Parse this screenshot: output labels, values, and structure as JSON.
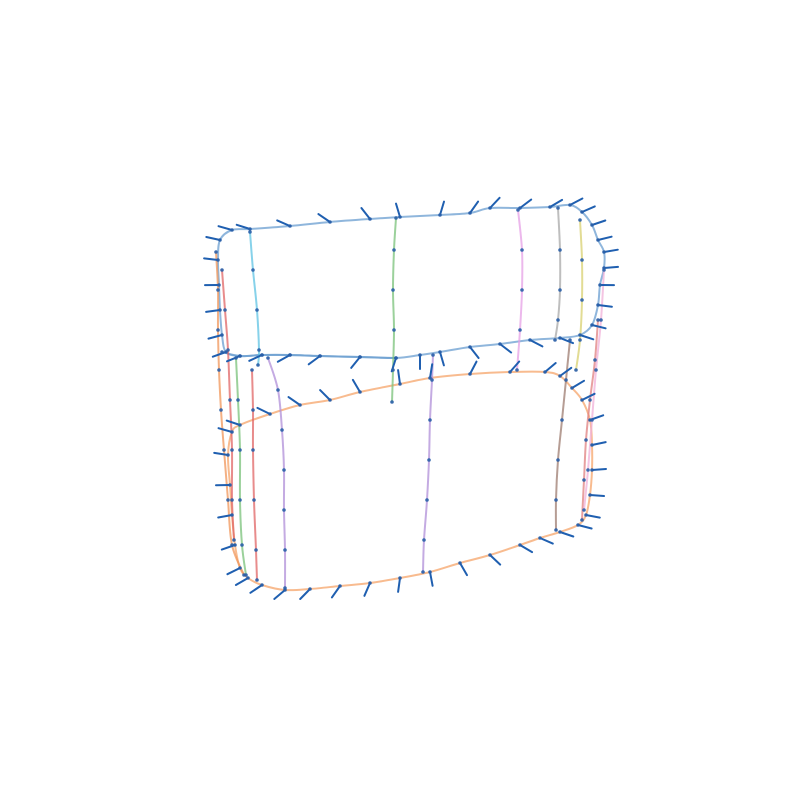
{
  "figure": {
    "kind": "3d-curve-network-with-normals",
    "background": "#ffffff",
    "normal_color": "#1f5fb0",
    "vertex_color": "#2a5fa8"
  },
  "curves": [
    {
      "name": "top-loop",
      "color": "#6a9ed0"
    },
    {
      "name": "middle-loop",
      "color": "#6a9ed0"
    },
    {
      "name": "bottom-loop",
      "color": "#f5a46a"
    },
    {
      "name": "left-orange-rail",
      "color": "#f0965a"
    },
    {
      "name": "left-red-rail",
      "color": "#e06666"
    },
    {
      "name": "left-green-rail",
      "color": "#79c27a"
    },
    {
      "name": "left-cyan-rail",
      "color": "#5fc3e3"
    },
    {
      "name": "left-purple-rail",
      "color": "#b08fd8"
    },
    {
      "name": "center-green-rail",
      "color": "#79c27a"
    },
    {
      "name": "center-purple-rail",
      "color": "#b08fd8"
    },
    {
      "name": "right-pink-rail",
      "color": "#e6a0e6"
    },
    {
      "name": "right-gray-rail",
      "color": "#a8a8a8"
    },
    {
      "name": "right-olive-rail",
      "color": "#d8d070"
    },
    {
      "name": "right-brown-rail",
      "color": "#9e7c70"
    },
    {
      "name": "right-red-rail",
      "color": "#e08080"
    },
    {
      "name": "right-pink-rail-2",
      "color": "#f0b0d8"
    }
  ]
}
